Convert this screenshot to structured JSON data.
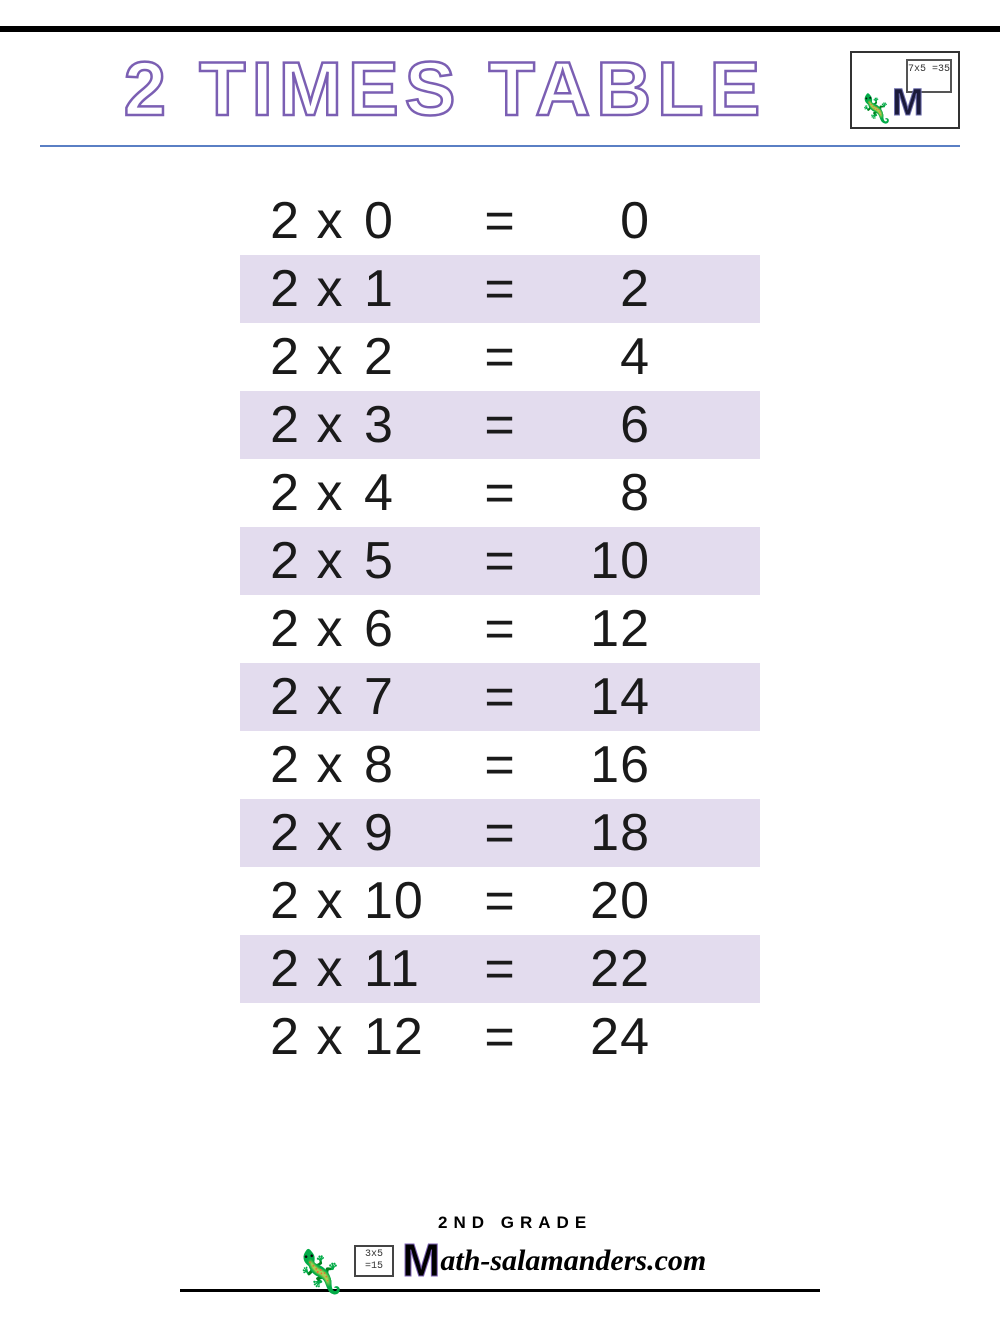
{
  "title": "2 TIMES TABLE",
  "title_color_stroke": "#7b5fb3",
  "title_fontsize": 76,
  "rule_color": "#5a7fc4",
  "shade_color": "#e3dcee",
  "text_color": "#1a1a1a",
  "row_fontsize": 52,
  "logo": {
    "board_text": "7x5\n=35",
    "m_glyph": "M"
  },
  "table": {
    "multiplicand": 2,
    "op_symbol": "x",
    "eq_symbol": "=",
    "rows": [
      {
        "a": "2",
        "b": "0",
        "res": "0",
        "shaded": false
      },
      {
        "a": "2",
        "b": "1",
        "res": "2",
        "shaded": true
      },
      {
        "a": "2",
        "b": "2",
        "res": "4",
        "shaded": false
      },
      {
        "a": "2",
        "b": "3",
        "res": "6",
        "shaded": true
      },
      {
        "a": "2",
        "b": "4",
        "res": "8",
        "shaded": false
      },
      {
        "a": "2",
        "b": "5",
        "res": "10",
        "shaded": true
      },
      {
        "a": "2",
        "b": "6",
        "res": "12",
        "shaded": false
      },
      {
        "a": "2",
        "b": "7",
        "res": "14",
        "shaded": true
      },
      {
        "a": "2",
        "b": "8",
        "res": "16",
        "shaded": false
      },
      {
        "a": "2",
        "b": "9",
        "res": "18",
        "shaded": true
      },
      {
        "a": "2",
        "b": "10",
        "res": "20",
        "shaded": false
      },
      {
        "a": "2",
        "b": "11",
        "res": "22",
        "shaded": true
      },
      {
        "a": "2",
        "b": "12",
        "res": "24",
        "shaded": false
      }
    ]
  },
  "footer": {
    "grade": "2ND GRADE",
    "site_m": "M",
    "site_rest": "ath-salamanders.com",
    "board_text": "3x5\n=15"
  }
}
